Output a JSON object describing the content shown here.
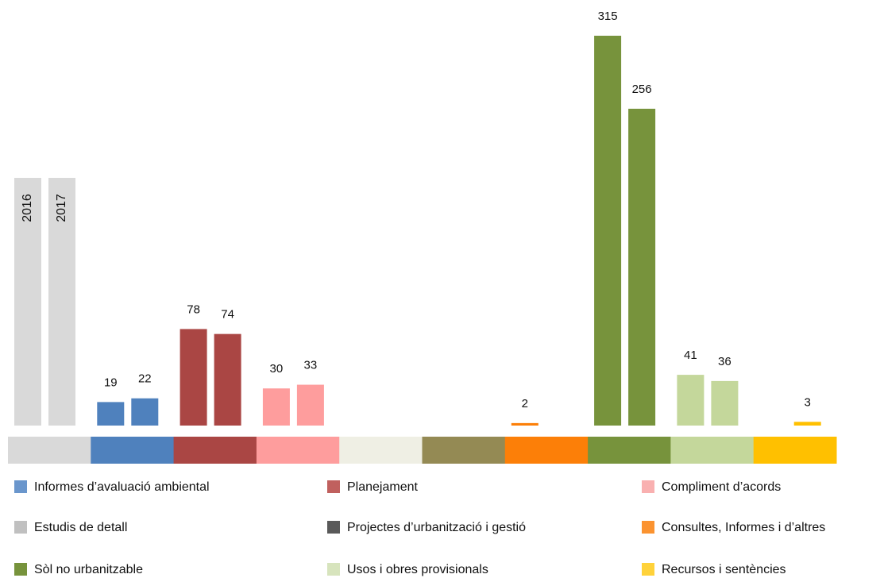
{
  "chart_data": {
    "type": "bar",
    "series": [
      {
        "name": "2016"
      },
      {
        "name": "2017"
      }
    ],
    "groups": [
      {
        "color": "#d9d9d9",
        "values": [
          null,
          null
        ]
      },
      {
        "color": "#4f81bd",
        "values": [
          19,
          22
        ]
      },
      {
        "color": "#aa4644",
        "values": [
          78,
          74
        ]
      },
      {
        "color": "#fe9d9d",
        "values": [
          30,
          33
        ]
      },
      {
        "color": "#efefe4",
        "values": [
          null,
          null
        ]
      },
      {
        "color": "#948a54",
        "values": [
          null,
          null
        ]
      },
      {
        "color": "#fc7f08",
        "values": [
          2,
          null
        ]
      },
      {
        "color": "#77933c",
        "values": [
          315,
          256
        ]
      },
      {
        "color": "#c4d79b",
        "values": [
          41,
          36
        ]
      },
      {
        "color": "#ffc000",
        "values": [
          null,
          3
        ]
      }
    ],
    "legend": [
      {
        "name": "Informes d’avaluació ambiental",
        "color": "#6a96cc"
      },
      {
        "name": "Planejament",
        "color": "#c0605e"
      },
      {
        "name": "Compliment d’acords",
        "color": "#f9b0b0"
      },
      {
        "name": "Estudis de detall",
        "color": "#c0c0c0"
      },
      {
        "name": "Projectes d’urbanització i gestió",
        "color": "#595959"
      },
      {
        "name": "Consultes, Informes i d’altres",
        "color": "#fb9330"
      },
      {
        "name": "Sòl no urbanitzable",
        "color": "#77933c"
      },
      {
        "name": "Usos i obres provisionals",
        "color": "#d7e4bd"
      },
      {
        "name": "Recursos i sentències",
        "color": "#ffd23a"
      }
    ]
  }
}
